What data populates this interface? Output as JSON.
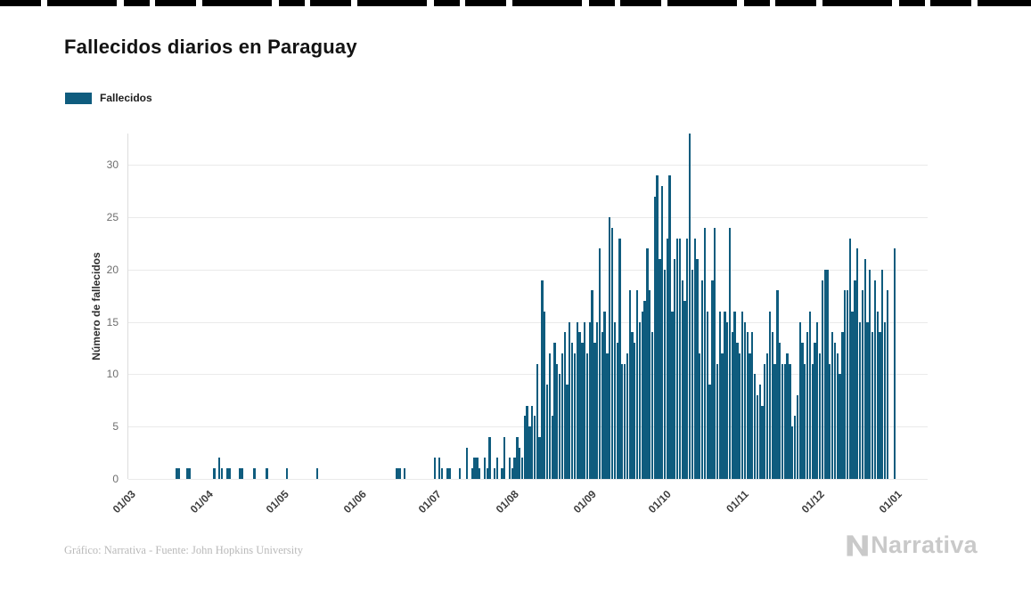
{
  "header": {
    "title": "Fallecidos diarios en Paraguay"
  },
  "legend": {
    "label": "Fallecidos",
    "color": "#0F5C7E"
  },
  "footer": {
    "credit": "Gráfico: Narrativa - Fuente: John Hopkins University",
    "brand": "Narrativa"
  },
  "chart_data": {
    "type": "bar",
    "title": "Fallecidos diarios en Paraguay",
    "xlabel": "",
    "ylabel": "Número de fallecidos",
    "series_name": "Fallecidos",
    "bar_color": "#0F5C7E",
    "grid": true,
    "legend_position": "top-left",
    "ylim": [
      0,
      33
    ],
    "y_ticks": [
      0,
      5,
      10,
      15,
      20,
      25,
      30
    ],
    "x_start": "01/03",
    "x_end": "01/01",
    "x_tick_labels": [
      "01/03",
      "01/04",
      "01/05",
      "01/06",
      "01/07",
      "01/08",
      "01/09",
      "01/10",
      "01/11",
      "01/12",
      "01/01"
    ],
    "x_tick_day_offsets": [
      0,
      31,
      61,
      92,
      122,
      153,
      184,
      214,
      245,
      275,
      306
    ],
    "values": [
      0,
      0,
      0,
      0,
      0,
      0,
      0,
      0,
      0,
      0,
      0,
      0,
      0,
      0,
      0,
      0,
      0,
      0,
      0,
      1,
      1,
      0,
      0,
      1,
      1,
      0,
      0,
      0,
      0,
      0,
      0,
      0,
      0,
      0,
      1,
      0,
      2,
      1,
      0,
      1,
      1,
      0,
      0,
      0,
      1,
      1,
      0,
      0,
      0,
      0,
      1,
      0,
      0,
      0,
      0,
      1,
      0,
      0,
      0,
      0,
      0,
      0,
      0,
      1,
      0,
      0,
      0,
      0,
      0,
      0,
      0,
      0,
      0,
      0,
      0,
      1,
      0,
      0,
      0,
      0,
      0,
      0,
      0,
      0,
      0,
      0,
      0,
      0,
      0,
      0,
      0,
      0,
      0,
      0,
      0,
      0,
      0,
      0,
      0,
      0,
      0,
      0,
      0,
      0,
      0,
      0,
      0,
      1,
      1,
      0,
      1,
      0,
      0,
      0,
      0,
      0,
      0,
      0,
      0,
      0,
      0,
      0,
      2,
      0,
      2,
      1,
      0,
      1,
      1,
      0,
      0,
      0,
      1,
      0,
      0,
      3,
      0,
      1,
      2,
      2,
      1,
      0,
      2,
      1,
      4,
      0,
      1,
      2,
      0,
      1,
      4,
      0,
      2,
      1,
      2,
      4,
      3,
      2,
      6,
      7,
      5,
      7,
      6,
      11,
      4,
      19,
      16,
      9,
      12,
      6,
      13,
      11,
      10,
      12,
      14,
      9,
      15,
      13,
      12,
      15,
      14,
      13,
      15,
      12,
      15,
      18,
      13,
      15,
      22,
      14,
      16,
      12,
      25,
      24,
      15,
      13,
      23,
      11,
      11,
      12,
      18,
      14,
      13,
      18,
      15,
      16,
      17,
      22,
      18,
      14,
      27,
      29,
      21,
      28,
      20,
      23,
      29,
      16,
      21,
      23,
      23,
      19,
      17,
      23,
      33,
      20,
      23,
      21,
      12,
      19,
      24,
      16,
      9,
      19,
      24,
      11,
      16,
      12,
      16,
      15,
      24,
      14,
      16,
      13,
      12,
      16,
      15,
      14,
      12,
      14,
      10,
      8,
      9,
      7,
      11,
      12,
      16,
      14,
      11,
      18,
      13,
      11,
      11,
      12,
      11,
      5,
      6,
      8,
      15,
      13,
      11,
      14,
      16,
      11,
      13,
      15,
      12,
      19,
      20,
      20,
      11,
      14,
      13,
      12,
      10,
      14,
      18,
      18,
      23,
      16,
      19,
      22,
      15,
      18,
      21,
      15,
      20,
      14,
      19,
      16,
      14,
      20,
      15,
      18,
      0,
      0,
      22
    ]
  }
}
